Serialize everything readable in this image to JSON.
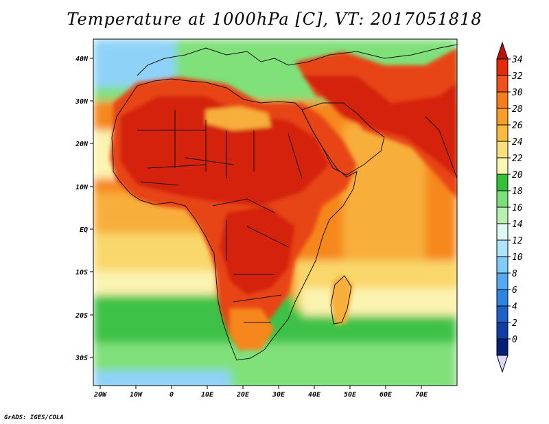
{
  "title": "Temperature at 1000hPa [C], VT: 2017051818",
  "credit": "GrADS: IGES/COLA",
  "map": {
    "region": "Africa and Middle East",
    "lon_range": [
      -22,
      80
    ],
    "lat_range": [
      -37,
      45
    ],
    "lat_ticks": [
      "40N",
      "30N",
      "20N",
      "10N",
      "EQ",
      "10S",
      "20S",
      "30S"
    ],
    "lon_ticks": [
      "20W",
      "10W",
      "0",
      "10E",
      "20E",
      "30E",
      "40E",
      "50E",
      "60E",
      "70E"
    ]
  },
  "colorbar": {
    "labels": [
      "34",
      "32",
      "30",
      "28",
      "26",
      "24",
      "22",
      "20",
      "18",
      "16",
      "14",
      "12",
      "10",
      "8",
      "6",
      "4",
      "2",
      "0"
    ],
    "colors_top_to_bottom": [
      "#e32b0a",
      "#f0501a",
      "#f67d1a",
      "#f89e26",
      "#f8bb40",
      "#f9df7c",
      "#fbf8b4",
      "#35c03a",
      "#7ce07a",
      "#b8f0b4",
      "#e0f8f4",
      "#b0e4fa",
      "#80ccf7",
      "#53aaf0",
      "#2f84e0",
      "#1f5fc7",
      "#103ea2",
      "#061f78"
    ],
    "over_color": "#c0100a",
    "under_color": "#d9d9ff"
  },
  "palette": {
    "hot": "#d4210b",
    "red": "#e84414",
    "orange": "#f6871e",
    "light_orange": "#f8ae3a",
    "yellow": "#f9d76a",
    "cream": "#fbf3b0",
    "green": "#3dc246",
    "light_green": "#80e07a",
    "pale_green": "#b9efb2",
    "light_blue": "#8fd2f8",
    "blue": "#5ab0f2"
  }
}
